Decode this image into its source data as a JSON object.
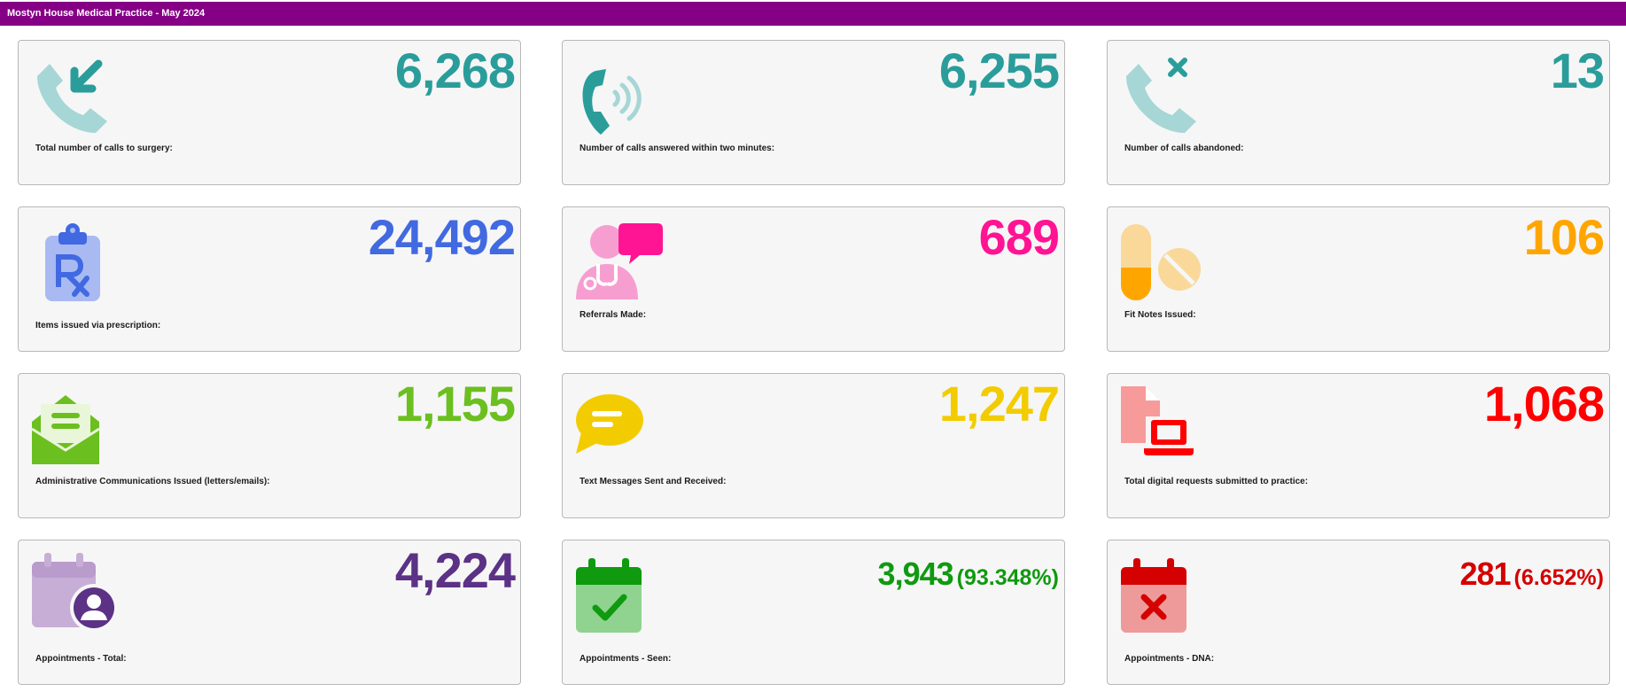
{
  "header": {
    "title": "Mostyn House Medical Practice - May 2024"
  },
  "cards": [
    {
      "value": "6,268",
      "label": "Total number of calls to surgery:",
      "color": "#2a9d9b",
      "icon": "phone-incoming-icon"
    },
    {
      "value": "6,255",
      "label": "Number of calls answered within two minutes:",
      "color": "#2a9d9b",
      "icon": "phone-ringing-icon"
    },
    {
      "value": "13",
      "label": "Number of calls abandoned:",
      "color": "#2a9d9b",
      "icon": "phone-missed-icon"
    },
    {
      "value": "24,492",
      "label": "Items issued via prescription:",
      "color": "#4169e1",
      "icon": "prescription-clipboard-icon"
    },
    {
      "value": "689",
      "label": "Referrals Made:",
      "color": "#ff1493",
      "icon": "doctor-chat-icon"
    },
    {
      "value": "106",
      "label": "Fit Notes Issued:",
      "color": "#ffa500",
      "icon": "pills-icon"
    },
    {
      "value": "1,155",
      "label": "Administrative Communications Issued (letters/emails):",
      "color": "#6bbf1f",
      "icon": "open-envelope-icon"
    },
    {
      "value": "1,247",
      "label": "Text Messages Sent and Received:",
      "color": "#f2cc00",
      "icon": "message-bubble-icon"
    },
    {
      "value": "1,068",
      "label": "Total digital requests submitted to practice:",
      "color": "#ff0000",
      "icon": "file-laptop-icon"
    },
    {
      "value": "4,224",
      "label": "Appointments - Total:",
      "color": "#5b3285",
      "icon": "calendar-user-icon"
    },
    {
      "value": "3,943",
      "pct": "(93.348%)",
      "label": "Appointments - Seen:",
      "color": "#0f9a0f",
      "icon": "calendar-check-icon"
    },
    {
      "value": "281",
      "pct": "(6.652%)",
      "label": "Appointments - DNA:",
      "color": "#d50000",
      "icon": "calendar-cross-icon"
    }
  ]
}
